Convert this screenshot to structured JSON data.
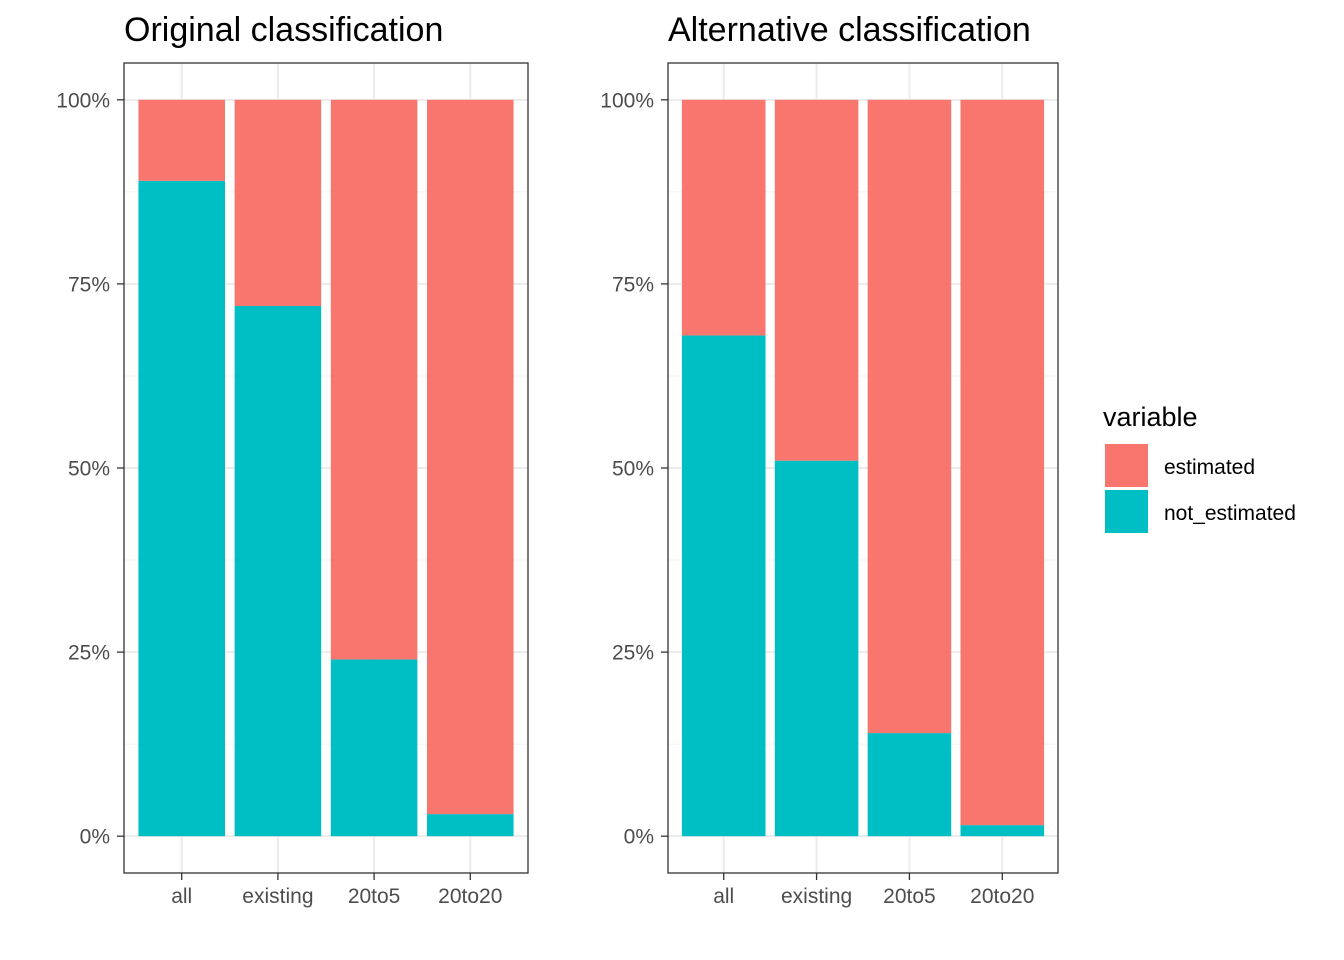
{
  "legend": {
    "title": "variable",
    "entries": [
      {
        "key": "estimated",
        "label": "estimated",
        "color": "#F8766D"
      },
      {
        "key": "not_estimated",
        "label": "not_estimated",
        "color": "#00BFC4"
      }
    ]
  },
  "chart_data": [
    {
      "type": "bar",
      "stacked": true,
      "title": "Original classification",
      "categories": [
        "all",
        "existing",
        "20to5",
        "20to20"
      ],
      "series": [
        {
          "name": "estimated",
          "values": [
            11,
            28,
            76,
            97
          ]
        },
        {
          "name": "not_estimated",
          "values": [
            89,
            72,
            24,
            3
          ]
        }
      ],
      "ylim": [
        0,
        100
      ],
      "y_ticks": [
        "0%",
        "25%",
        "50%",
        "75%",
        "100%"
      ],
      "grid": true
    },
    {
      "type": "bar",
      "stacked": true,
      "title": "Alternative classification",
      "categories": [
        "all",
        "existing",
        "20to5",
        "20to20"
      ],
      "series": [
        {
          "name": "estimated",
          "values": [
            32,
            49,
            86,
            98.5
          ]
        },
        {
          "name": "not_estimated",
          "values": [
            68,
            51,
            14,
            1.5
          ]
        }
      ],
      "ylim": [
        0,
        100
      ],
      "y_ticks": [
        "0%",
        "25%",
        "50%",
        "75%",
        "100%"
      ],
      "grid": true
    }
  ]
}
